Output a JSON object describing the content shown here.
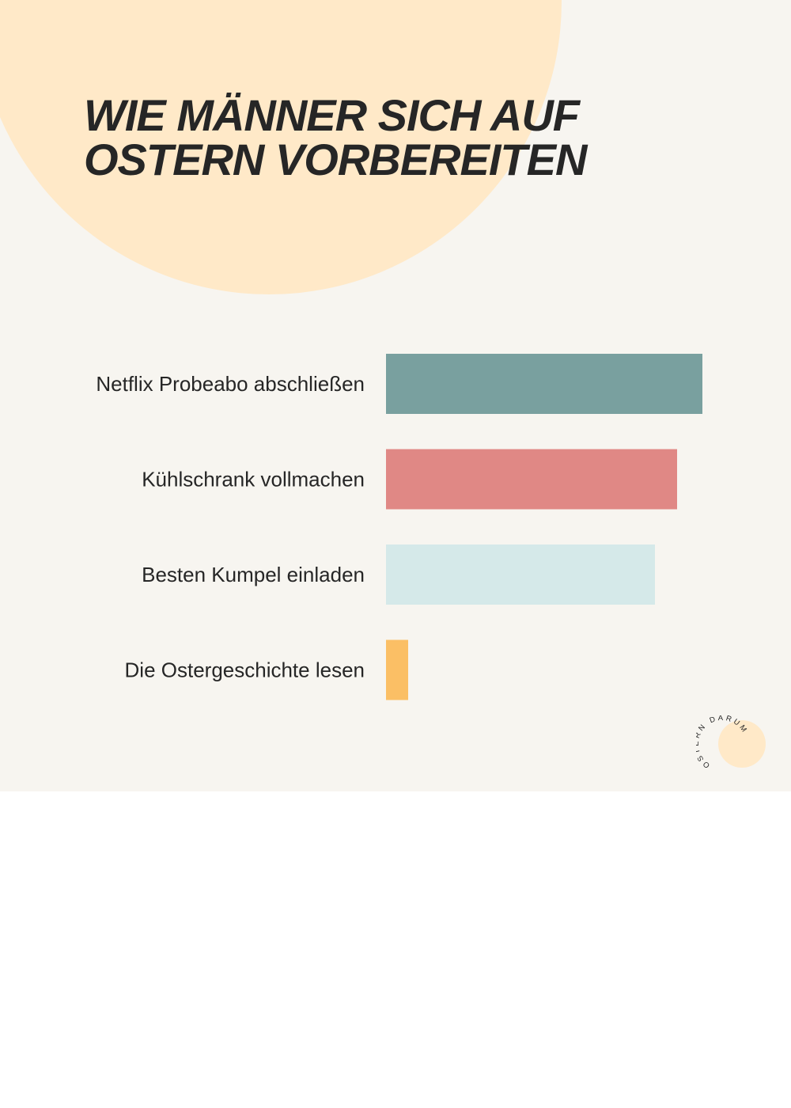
{
  "title_lines": [
    "WIE MÄNNER SICH AUF",
    "OSTERN VORBEREITEN"
  ],
  "logo_text": "OSTERN DARUM",
  "colors": {
    "background": "#f7f5f0",
    "blob": "#ffe9c8",
    "text": "#262626"
  },
  "chart_data": {
    "type": "bar",
    "orientation": "horizontal",
    "title": "WIE MÄNNER SICH AUF OSTERN VORBEREITEN",
    "categories": [
      "Netflix Probeabo abschließen",
      "Kühlschrank vollmachen",
      "Besten Kumpel einladen",
      "Die Ostergeschichte lesen"
    ],
    "values": [
      100,
      92,
      85,
      7
    ],
    "bar_colors": [
      "#79a09f",
      "#e08885",
      "#d5e9e9",
      "#fbbf65"
    ],
    "xlim": [
      0,
      100
    ],
    "grid": false,
    "axes_visible": false
  }
}
